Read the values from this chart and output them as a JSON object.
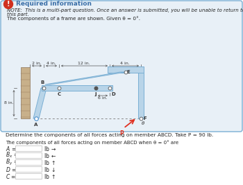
{
  "title_bold": "Required information",
  "note_line1": "NOTE:  This is a multi-part question. Once an answer is submitted, you will be unable to return to",
  "note_line2": "this part.",
  "subtitle": "The components of a frame are shown. Given θ = 0°.",
  "problem_text": "Determine the components of all forces acting on member ABCD. Take P = 90 lb.",
  "answer_intro": "The components of all forces acting on member ABCD when θ = 0° are",
  "row_labels": [
    "A =",
    "B_x =",
    "B_y =",
    "D =",
    "C ="
  ],
  "row_units": [
    "lb →",
    "lb ←",
    "lb ↑",
    "lb ↓",
    "lb ↑"
  ],
  "bg_color": "#e8f0f7",
  "box_border": "#7aafd4",
  "wall_color": "#c8b08a",
  "frame_fill": "#b8d4e8",
  "frame_edge": "#7aafd4",
  "arrow_color": "#e03020",
  "title_color": "#3a6fa8",
  "text_color": "#222222",
  "dim_line_color": "#555555",
  "icon_bg": "#d03020",
  "icon_fg": "#ffffff",
  "input_box_color": "#cccccc",
  "note_italic": true
}
